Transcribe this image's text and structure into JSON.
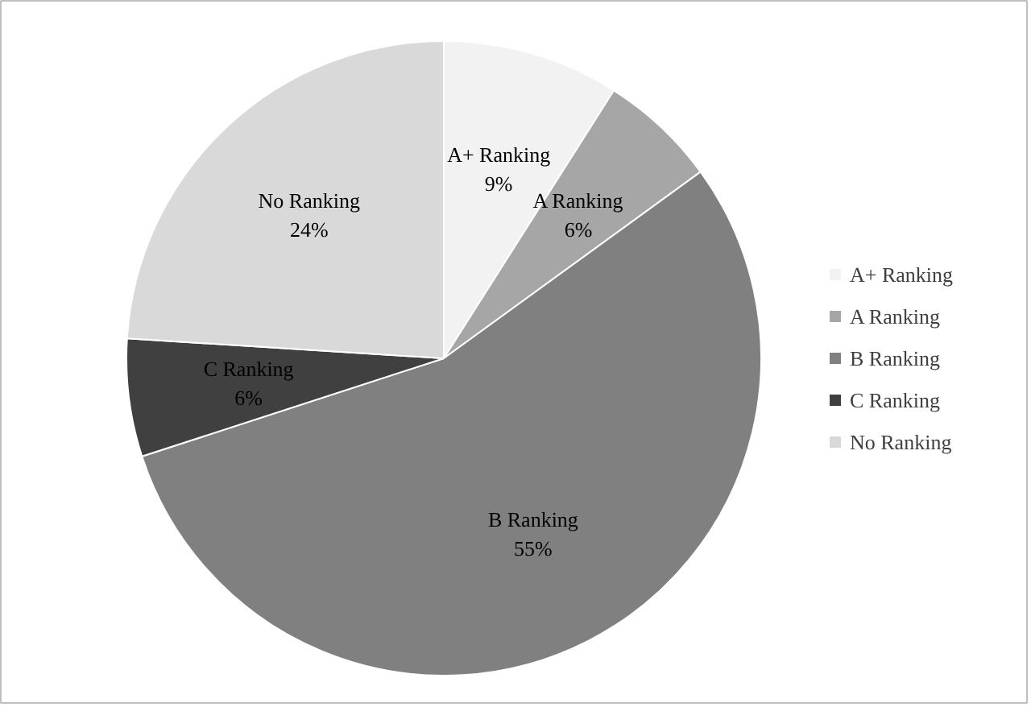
{
  "chart_data": {
    "type": "pie",
    "categories": [
      "A+ Ranking",
      "A Ranking",
      "B Ranking",
      "C Ranking",
      "No Ranking"
    ],
    "values": [
      9,
      6,
      55,
      6,
      24
    ],
    "colors": [
      "#f2f2f2",
      "#a6a6a6",
      "#808080",
      "#404040",
      "#d9d9d9"
    ],
    "value_labels": [
      "9%",
      "6%",
      "55%",
      "6%",
      "24%"
    ],
    "legend": "right"
  }
}
